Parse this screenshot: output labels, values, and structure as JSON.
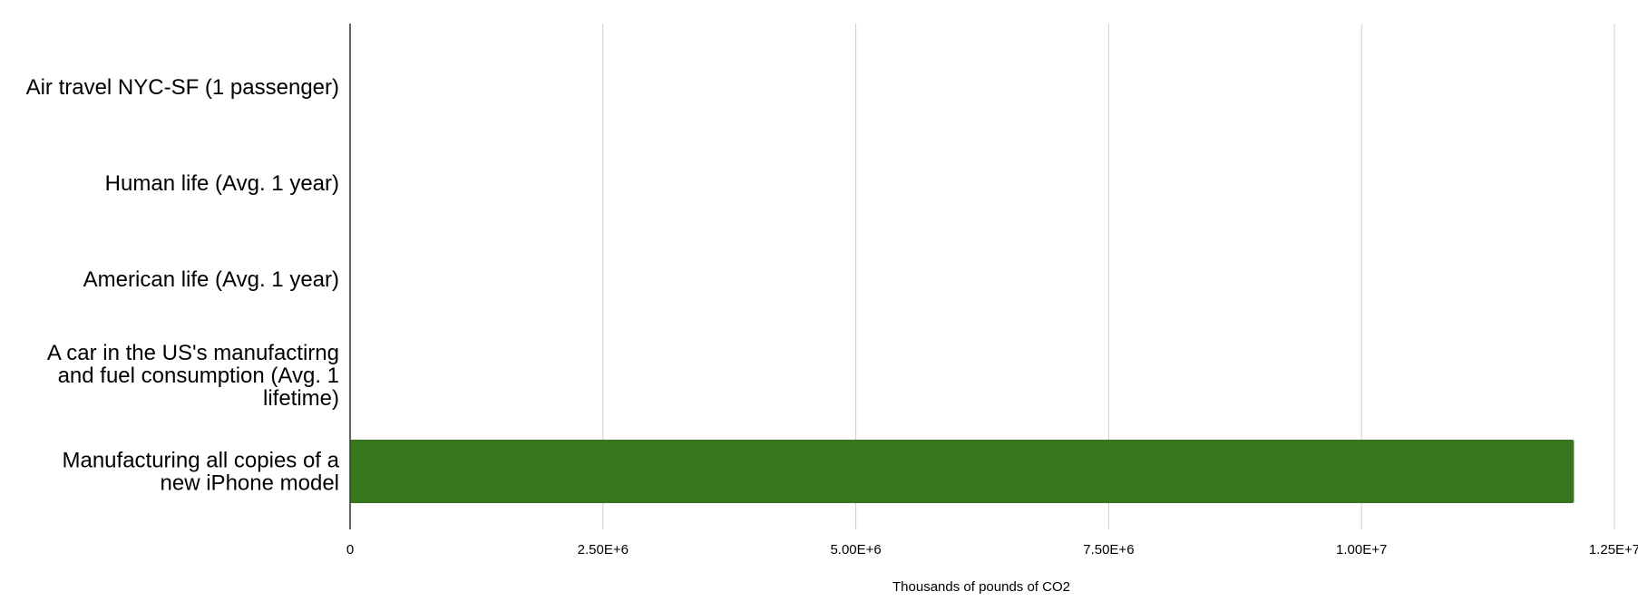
{
  "chart_data": {
    "type": "bar",
    "orientation": "horizontal",
    "categories": [
      [
        "Air travel NYC-SF (1 passenger)"
      ],
      [
        "Human life (Avg. 1 year)"
      ],
      [
        "American life (Avg. 1 year)"
      ],
      [
        "A car in the US's manufactirng",
        "and fuel consumption (Avg. 1",
        "lifetime)"
      ],
      [
        "Manufacturing all copies of a",
        "new iPhone model"
      ]
    ],
    "values": [
      1.8,
      10.8,
      36.2,
      126,
      12100000
    ],
    "xlabel": "Thousands of pounds of CO2",
    "xlim": [
      0,
      12500000
    ],
    "xticks": [
      0,
      2500000,
      5000000,
      7500000,
      10000000,
      12500000
    ],
    "xtick_labels": [
      "0",
      "2.50E+6",
      "5.00E+6",
      "7.50E+6",
      "1.00E+7",
      "1.25E+7"
    ],
    "grid": true,
    "legend": "none",
    "bar_color": "#38761d",
    "grid_color": "#cccccc",
    "axis_color": "#333333"
  }
}
